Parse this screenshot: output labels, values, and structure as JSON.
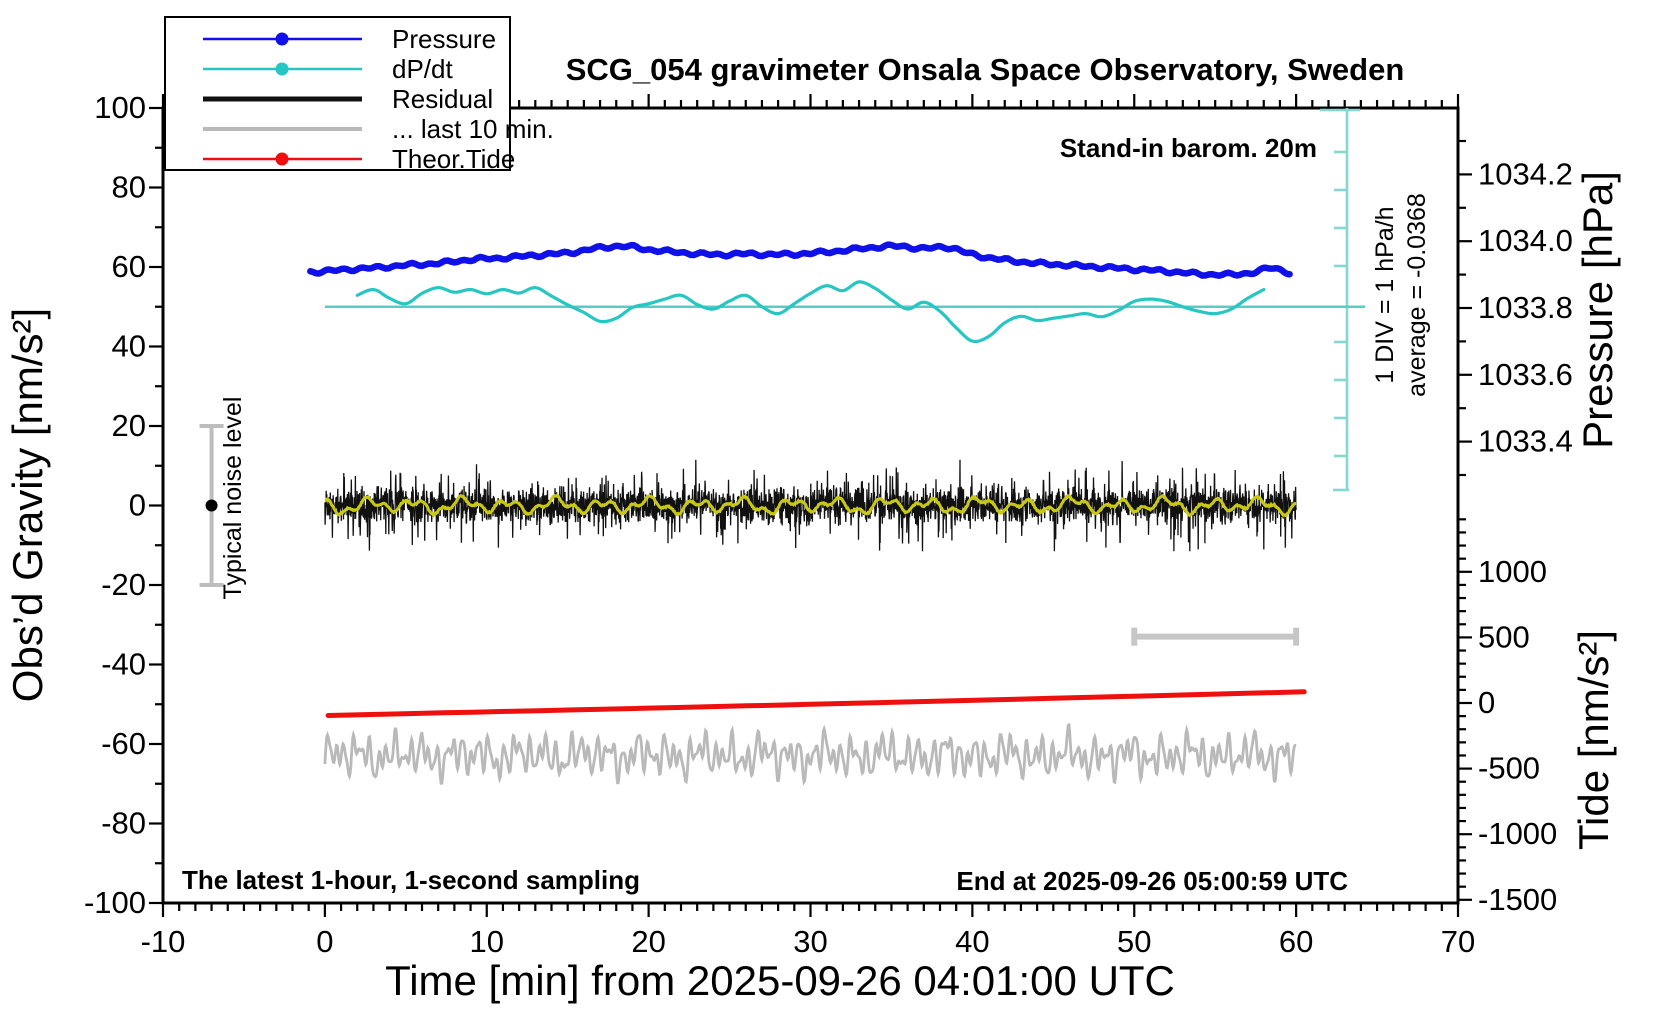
{
  "title": "SCG_054 gravimeter Onsala Space Observatory, Sweden",
  "annotations": {
    "barometer": "Stand-in barom. 20m",
    "div_scale": "1 DIV = 1 hPa/h",
    "average": "average = -0.0368",
    "noise_level": "Typical noise level",
    "sampling_note": "The latest 1-hour, 1-second sampling",
    "end_time": "End at 2025-09-26 05:00:59 UTC"
  },
  "colors": {
    "pressure": "#1010e8",
    "dpdt": "#26c6c2",
    "dpdt_ruler": "#86d6d2",
    "dpdt_zero_line": "#5accc6",
    "residual": "#111111",
    "residual_smooth": "#c9c915",
    "last10": "#b9b9b9",
    "tide": "#ee0f0f",
    "noise_bar": "#bdbdbd",
    "scale_bar": "#c6c6c6",
    "frame": "#000000"
  },
  "legend": [
    {
      "label": "Pressure",
      "series": "pressure",
      "marker": "dot",
      "line_width": 2.5
    },
    {
      "label": "dP/dt",
      "series": "dpdt",
      "marker": "dot",
      "line_width": 2.5
    },
    {
      "label": "Residual",
      "series": "residual",
      "marker": "none",
      "line_width": 5
    },
    {
      "label": "... last 10 min.",
      "series": "last10",
      "marker": "none",
      "line_width": 4
    },
    {
      "label": "Theor.Tide",
      "series": "tide",
      "marker": "dot",
      "line_width": 2.5
    }
  ],
  "axes": {
    "x": {
      "label": "Time [min] from 2025-09-26 04:01:00 UTC",
      "min": -10,
      "max": 70,
      "major_ticks": [
        -10,
        0,
        10,
        20,
        30,
        40,
        50,
        60,
        70
      ],
      "minor_step": 1
    },
    "gravity": {
      "label": "Obs’d Gravity [nm/s²]",
      "min": -100,
      "max": 100,
      "major_ticks": [
        100,
        80,
        60,
        40,
        20,
        0,
        -20,
        -40,
        -60,
        -80,
        -100
      ],
      "minor_step": 10
    },
    "pressure": {
      "label": "Pressure [hPa]",
      "major_ticks": [
        1034.2,
        1034.0,
        1033.8,
        1033.6,
        1033.4
      ],
      "minor_step": 0.1,
      "minor_range": [
        1033.3,
        1034.3
      ]
    },
    "tide": {
      "label": "Tide [nm/s²]",
      "major_ticks": [
        1000,
        500,
        0,
        -500,
        -1000,
        -1500
      ],
      "minor_step": 100,
      "minor_range": [
        -1500,
        1400
      ]
    }
  },
  "noise_indicator": {
    "center_gravity": 0,
    "half_range": 20,
    "x_minute": -7
  },
  "scale_bar": {
    "from_minute": 50,
    "to_minute": 60,
    "gravity_level": -33
  },
  "dpdt_reference": {
    "zero_at_gravity": 50,
    "div_hpa_per_h": 1,
    "average_hpa_per_h": -0.0368
  },
  "chart_data": {
    "type": "line",
    "x_unit": "min",
    "x_range_data": [
      0,
      60
    ],
    "series": [
      {
        "name": "Pressure",
        "unit": "hPa",
        "axis": "pressure",
        "points": [
          [
            -0.9,
            1033.908
          ],
          [
            0,
            1033.91
          ],
          [
            1.5,
            1033.916
          ],
          [
            3,
            1033.92
          ],
          [
            5,
            1033.928
          ],
          [
            7,
            1033.934
          ],
          [
            9,
            1033.945
          ],
          [
            11,
            1033.95
          ],
          [
            13,
            1033.958
          ],
          [
            15,
            1033.965
          ],
          [
            17,
            1033.98
          ],
          [
            18.5,
            1033.985
          ],
          [
            20,
            1033.975
          ],
          [
            22,
            1033.966
          ],
          [
            24,
            1033.96
          ],
          [
            26,
            1033.962
          ],
          [
            28,
            1033.96
          ],
          [
            30,
            1033.964
          ],
          [
            32,
            1033.972
          ],
          [
            34,
            1033.982
          ],
          [
            35.5,
            1033.985
          ],
          [
            37,
            1033.978
          ],
          [
            38.5,
            1033.982
          ],
          [
            40,
            1033.96
          ],
          [
            42,
            1033.944
          ],
          [
            44,
            1033.934
          ],
          [
            46,
            1033.928
          ],
          [
            48,
            1033.922
          ],
          [
            50,
            1033.916
          ],
          [
            52,
            1033.91
          ],
          [
            54,
            1033.902
          ],
          [
            56,
            1033.9
          ],
          [
            57.5,
            1033.908
          ],
          [
            58.5,
            1033.92
          ],
          [
            59.6,
            1033.905
          ]
        ],
        "ripple_amp_hpa": 0.0035
      },
      {
        "name": "dP/dt",
        "unit": "hPa/h",
        "axis": "dpdt",
        "points": [
          [
            2,
            0.3
          ],
          [
            3,
            0.45
          ],
          [
            4,
            0.22
          ],
          [
            5,
            0.08
          ],
          [
            6,
            0.35
          ],
          [
            7,
            0.5
          ],
          [
            8,
            0.38
          ],
          [
            9,
            0.45
          ],
          [
            10,
            0.34
          ],
          [
            11,
            0.45
          ],
          [
            12,
            0.36
          ],
          [
            13,
            0.5
          ],
          [
            14,
            0.28
          ],
          [
            15,
            0.05
          ],
          [
            16,
            -0.15
          ],
          [
            17,
            -0.38
          ],
          [
            18,
            -0.3
          ],
          [
            19,
            -0.02
          ],
          [
            20,
            0.08
          ],
          [
            21,
            0.2
          ],
          [
            22,
            0.3
          ],
          [
            23,
            0.06
          ],
          [
            24,
            -0.06
          ],
          [
            25,
            0.15
          ],
          [
            26,
            0.3
          ],
          [
            27,
            0.0
          ],
          [
            28,
            -0.18
          ],
          [
            29,
            0.08
          ],
          [
            30,
            0.35
          ],
          [
            31,
            0.55
          ],
          [
            32,
            0.42
          ],
          [
            33,
            0.65
          ],
          [
            34,
            0.48
          ],
          [
            35,
            0.18
          ],
          [
            36,
            -0.06
          ],
          [
            37,
            0.12
          ],
          [
            38,
            -0.12
          ],
          [
            39,
            -0.55
          ],
          [
            40,
            -0.9
          ],
          [
            41,
            -0.78
          ],
          [
            42,
            -0.42
          ],
          [
            43,
            -0.25
          ],
          [
            44,
            -0.36
          ],
          [
            45,
            -0.3
          ],
          [
            46,
            -0.24
          ],
          [
            47,
            -0.18
          ],
          [
            48,
            -0.26
          ],
          [
            49,
            -0.1
          ],
          [
            50,
            0.14
          ],
          [
            51,
            0.2
          ],
          [
            52,
            0.14
          ],
          [
            53,
            0.0
          ],
          [
            54,
            -0.12
          ],
          [
            55,
            -0.18
          ],
          [
            56,
            -0.06
          ],
          [
            57,
            0.22
          ],
          [
            58,
            0.45
          ]
        ]
      },
      {
        "name": "Theor.Tide",
        "unit": "nm/s²",
        "axis": "tide",
        "points": [
          [
            0.2,
            -95
          ],
          [
            30,
            -10
          ],
          [
            60.5,
            85
          ]
        ]
      },
      {
        "name": "Residual",
        "unit": "nm/s²",
        "axis": "gravity",
        "kind": "noise",
        "mean": 0,
        "core_amplitude": 5,
        "spike_amplitude": 11,
        "x_range": [
          0,
          60
        ],
        "sampling_s": 1
      },
      {
        "name": "Residual smoothed",
        "unit": "nm/s²",
        "axis": "gravity",
        "kind": "smooth-noise",
        "mean": 0,
        "amplitude": 2,
        "x_range": [
          0,
          60
        ]
      },
      {
        "name": "... last 10 min.",
        "unit": "nm/s²",
        "axis": "tide",
        "kind": "smooth-noise",
        "mean": -400,
        "amplitude": 235,
        "x_range": [
          0,
          60
        ]
      }
    ]
  }
}
